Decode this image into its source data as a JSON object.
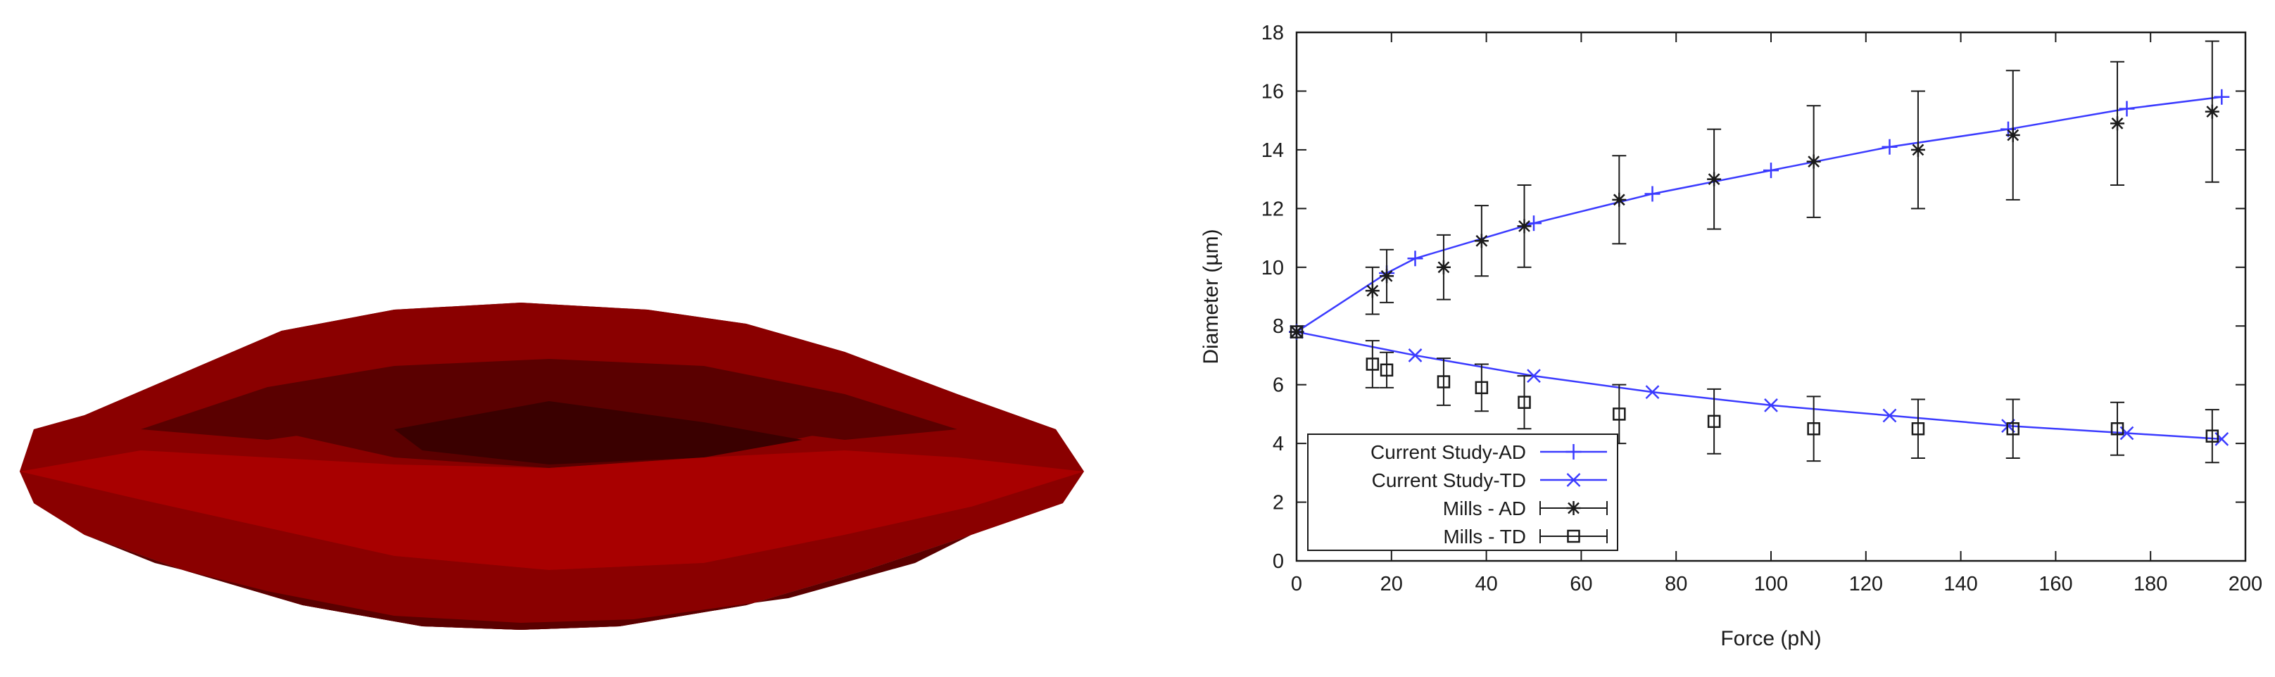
{
  "cell_image": {
    "description_label": "",
    "colors": {
      "light": "#a80000",
      "mid": "#8a0000",
      "dark": "#5a0000",
      "darkest": "#3a0000"
    }
  },
  "chart_data": {
    "type": "line",
    "title": "",
    "xlabel": "Force (pN)",
    "ylabel": "Diameter (µm)",
    "xlim": [
      0,
      200
    ],
    "ylim": [
      0,
      18
    ],
    "xticks": [
      0,
      20,
      40,
      60,
      80,
      100,
      120,
      140,
      160,
      180,
      200
    ],
    "yticks": [
      0,
      2,
      4,
      6,
      8,
      10,
      12,
      14,
      16,
      18
    ],
    "grid": false,
    "legend_position": "bottom-left",
    "series": [
      {
        "name": "Current Study-AD",
        "style": "line-with-plus",
        "color": "#3b3bff",
        "x": [
          0,
          19,
          25,
          50,
          75,
          100,
          125,
          150,
          175,
          195
        ],
        "y": [
          7.8,
          9.8,
          10.3,
          11.5,
          12.5,
          13.3,
          14.1,
          14.7,
          15.4,
          15.8
        ]
      },
      {
        "name": "Current Study-TD",
        "style": "line-with-x",
        "color": "#3b3bff",
        "x": [
          0,
          25,
          50,
          75,
          100,
          125,
          150,
          175,
          195
        ],
        "y": [
          7.8,
          7.0,
          6.3,
          5.75,
          5.3,
          4.95,
          4.6,
          4.35,
          4.15
        ]
      },
      {
        "name": "Mills - AD",
        "style": "asterisk-with-errorbars",
        "color": "#1a1a1a",
        "x": [
          0,
          16,
          19,
          31,
          39,
          48,
          68,
          88,
          109,
          131,
          151,
          173,
          193
        ],
        "y": [
          7.8,
          9.2,
          9.7,
          10.0,
          10.9,
          11.4,
          12.3,
          13.0,
          13.6,
          14.0,
          14.5,
          14.9,
          15.3
        ],
        "err": [
          0,
          0.8,
          0.9,
          1.1,
          1.2,
          1.4,
          1.5,
          1.7,
          1.9,
          2.0,
          2.2,
          2.1,
          2.4
        ]
      },
      {
        "name": "Mills - TD",
        "style": "square-with-errorbars",
        "color": "#1a1a1a",
        "x": [
          0,
          16,
          19,
          31,
          39,
          48,
          68,
          88,
          109,
          131,
          151,
          173,
          193
        ],
        "y": [
          7.8,
          6.7,
          6.5,
          6.1,
          5.9,
          5.4,
          5.0,
          4.75,
          4.5,
          4.5,
          4.5,
          4.5,
          4.25
        ],
        "err": [
          0,
          0.8,
          0.6,
          0.8,
          0.8,
          0.9,
          1.0,
          1.1,
          1.1,
          1.0,
          1.0,
          0.9,
          0.9
        ]
      }
    ]
  }
}
